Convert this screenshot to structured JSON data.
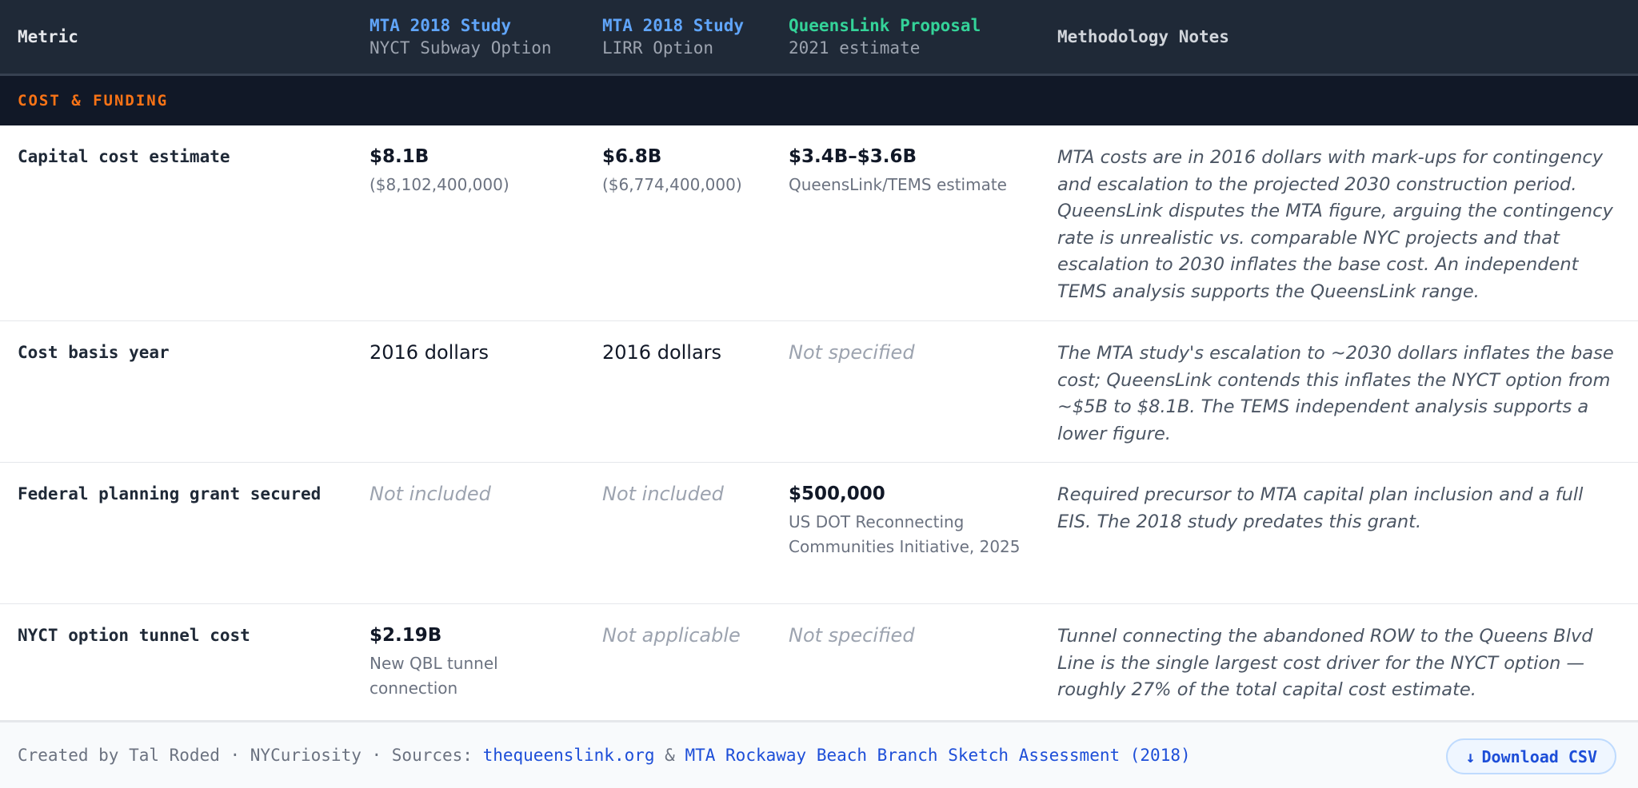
{
  "header": {
    "metric": "Metric",
    "col_a_title": "MTA 2018 Study",
    "col_a_sub": "NYCT Subway Option",
    "col_b_title": "MTA 2018 Study",
    "col_b_sub": "LIRR Option",
    "col_c_title": "QueensLink Proposal",
    "col_c_sub": "2021 estimate",
    "notes": "Methodology Notes"
  },
  "section": {
    "label": "COST & FUNDING"
  },
  "rows": [
    {
      "metric": "Capital cost estimate",
      "a_value": "$8.1B",
      "a_sub": "($8,102,400,000)",
      "b_value": "$6.8B",
      "b_sub": "($6,774,400,000)",
      "c_value": "$3.4B–$3.6B",
      "c_sub": "QueensLink/TEMS estimate",
      "note": "MTA costs are in 2016 dollars with mark-ups for contingency and escalation to the projected 2030 construction period. QueensLink disputes the MTA figure, arguing the contingency rate is unrealistic vs. comparable NYC projects and that escalation to 2030 inflates the base cost. An independent TEMS analysis supports the QueensLink range."
    },
    {
      "metric": "Cost basis year",
      "a_value": "2016 dollars",
      "b_value": "2016 dollars",
      "c_value": "Not specified",
      "note": "The MTA study's escalation to ~2030 dollars inflates the base cost; QueensLink contends this inflates the NYCT option from ~$5B to $8.1B. The TEMS independent analysis supports a lower figure."
    },
    {
      "metric": "Federal planning grant secured",
      "a_value": "Not included",
      "b_value": "Not included",
      "c_value": "$500,000",
      "c_sub": "US DOT Reconnecting Communities Initiative, 2025",
      "note": "Required precursor to MTA capital plan inclusion and a full EIS. The 2018 study predates this grant."
    },
    {
      "metric": "NYCT option tunnel cost",
      "a_value": "$2.19B",
      "a_sub": "New QBL tunnel connection",
      "b_value": "Not applicable",
      "c_value": "Not specified",
      "note": "Tunnel connecting the abandoned ROW to the Queens Blvd Line is the single largest cost driver for the NYCT option — roughly 27% of the total capital cost estimate."
    }
  ],
  "footer": {
    "prefix": "Created by Tal Roded · NYCuriosity · Sources: ",
    "link1": "thequeenslink.org",
    "amp": " & ",
    "link2": "MTA Rockaway Beach Branch Sketch Assessment (2018)",
    "download_label": "Download CSV",
    "download_icon": "↓"
  },
  "colors": {
    "header_bg": "#1f2937",
    "section_bg": "#111827",
    "section_text": "#f97316",
    "mta_blue": "#60a5fa",
    "queenslink_green": "#34d399",
    "link_blue": "#1d4ed8"
  }
}
